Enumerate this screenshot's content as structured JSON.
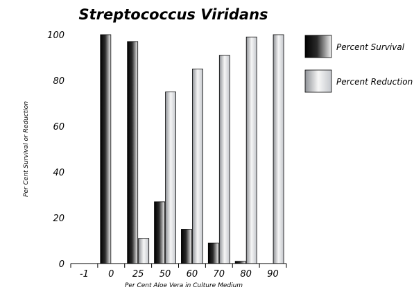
{
  "chart_data": {
    "type": "bar",
    "title": "Streptococcus Viridans",
    "xlabel": "Per Cent Aloe Vera in Culture Medium",
    "ylabel": "Per Cent Survival or Reduction",
    "categories": [
      "-1",
      "0",
      "25",
      "50",
      "60",
      "70",
      "80",
      "90"
    ],
    "series": [
      {
        "name": "Percent Survival",
        "values": [
          null,
          100,
          97,
          27,
          15,
          9,
          1,
          null
        ],
        "color": "#000000"
      },
      {
        "name": "Percent Reduction",
        "values": [
          null,
          null,
          11,
          75,
          85,
          91,
          99,
          100
        ],
        "color": "#c8cbd0"
      }
    ],
    "yticks": [
      "0",
      "20",
      "40",
      "60",
      "80",
      "100"
    ],
    "ylim": [
      0,
      100
    ],
    "grid": false,
    "legend_position": "right"
  }
}
